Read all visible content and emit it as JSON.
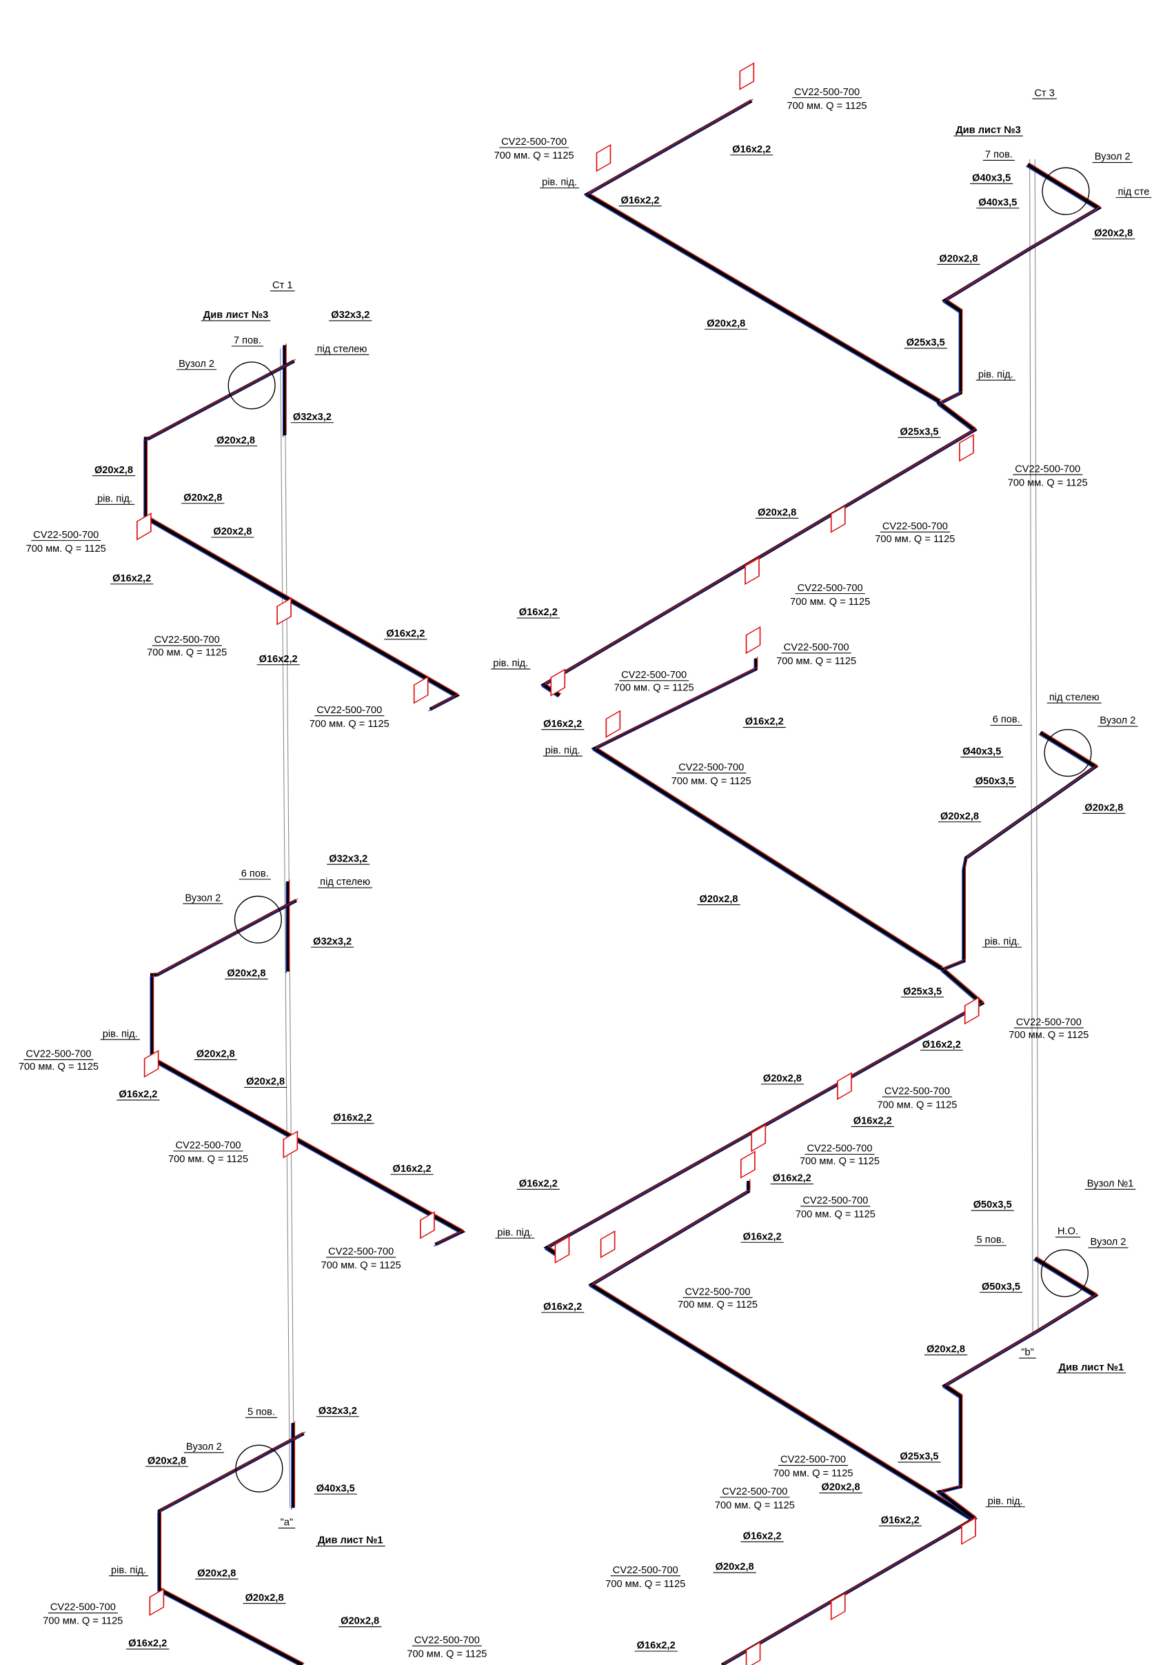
{
  "labels": [
    "Ст 1",
    "Див лист №3",
    "Ø32x3,2",
    "7 пов.",
    "під стелею",
    "Вузол 2",
    "Ø32x3,2",
    "Ø20x2,8",
    "Ø20x2,8",
    "рів. під.",
    "Ø20x2,8",
    "CV22-500-700",
    "700 мм. Q = 1125",
    "Ø20x2,8",
    "Ø16x2,2",
    "Ø16x2,2",
    "CV22-500-700",
    "700 мм. Q = 1125",
    "Ø16x2,2",
    "CV22-500-700",
    "700 мм. Q = 1125",
    "Ø32x3,2",
    "6 пов.",
    "під стелею",
    "Вузол 2",
    "Ø32x3,2",
    "Ø20x2,8",
    "рів. під.",
    "CV22-500-700",
    "700 мм. Q = 1125",
    "Ø20x2,8",
    "Ø20x2,8",
    "Ø16x2,2",
    "Ø16x2,2",
    "CV22-500-700",
    "700 мм. Q = 1125",
    "Ø16x2,2",
    "CV22-500-700",
    "700 мм. Q = 1125",
    "5 пов.",
    "Ø32x3,2",
    "Вузол 2",
    "Ø20x2,8",
    "Ø40x3,5",
    "\"a\"",
    "Див лист №1",
    "рів. під.",
    "Ø20x2,8",
    "CV22-500-700",
    "700 мм. Q = 1125",
    "Ø20x2,8",
    "Ø16x2,2",
    "Ø20x2,8",
    "CV22-500-700",
    "700 мм. Q = 1125",
    "CV22-500-700",
    "700 мм. Q = 1125",
    "CV22-500-700",
    "700 мм. Q = 1125",
    "Ø16x2,2",
    "рів. під.",
    "Ø16x2,2",
    "Ø20x2,8",
    "CV22-500-700",
    "700 мм. Q = 1125",
    "Ø20x2,8",
    "CV22-500-700",
    "700 мм. Q = 1125",
    "CV22-500-700",
    "700 мм. Q = 1125",
    "Ø16x2,2",
    "CV22-500-700",
    "700 мм. Q = 1125",
    "рів. під.",
    "CV22-500-700",
    "700 мм. Q = 1125",
    "Ø16x2,2",
    "Ø16x2,2",
    "рів. під.",
    "CV22-500-700",
    "700 мм. Q = 1125",
    "Ø20x2,8",
    "Ст 3",
    "Див лист №3",
    "7 пов.",
    "Вузол 2",
    "Ø40x3,5",
    "під сте",
    "Ø40x3,5",
    "Ø20x2,8",
    "Ø20x2,8",
    "Ø25x3,5",
    "рів. під.",
    "Ø25x3,5",
    "під стелею",
    "6 пов.",
    "Вузол 2",
    "Ø40x3,5",
    "Ø50x3,5",
    "Ø20x2,8",
    "Ø20x2,8",
    "рів. під.",
    "Ø25x3,5",
    "CV22-500-700",
    "700 мм. Q = 1125",
    "Ø16x2,2",
    "Ø20x2,8",
    "CV22-500-700",
    "700 мм. Q = 1125",
    "Ø16x2,2",
    "CV22-500-700",
    "700 мм. Q = 1125",
    "Ø16x2,2",
    "Ø16x2,2",
    "Вузол №1",
    "CV22-500-700",
    "700 мм. Q = 1125",
    "Ø50x3,5",
    "Н.О.",
    "рів. під.",
    "Ø16x2,2",
    "5 пов.",
    "Вузол 2",
    "CV22-500-700",
    "700 мм. Q = 1125",
    "Ø50x3,5",
    "Ø16x2,2",
    "Ø20x2,8",
    "\"b\"",
    "Див лист №1",
    "CV22-500-700",
    "700 мм. Q = 1125",
    "Ø25x3,5",
    "CV22-500-700",
    "700 мм. Q = 1125",
    "Ø20x2,8",
    "рів. під.",
    "Ø16x2,2",
    "Ø16x2,2",
    "CV22-500-700",
    "700 мм. Q = 1125",
    "Ø20x2,8",
    "Ø16x2,2"
  ]
}
